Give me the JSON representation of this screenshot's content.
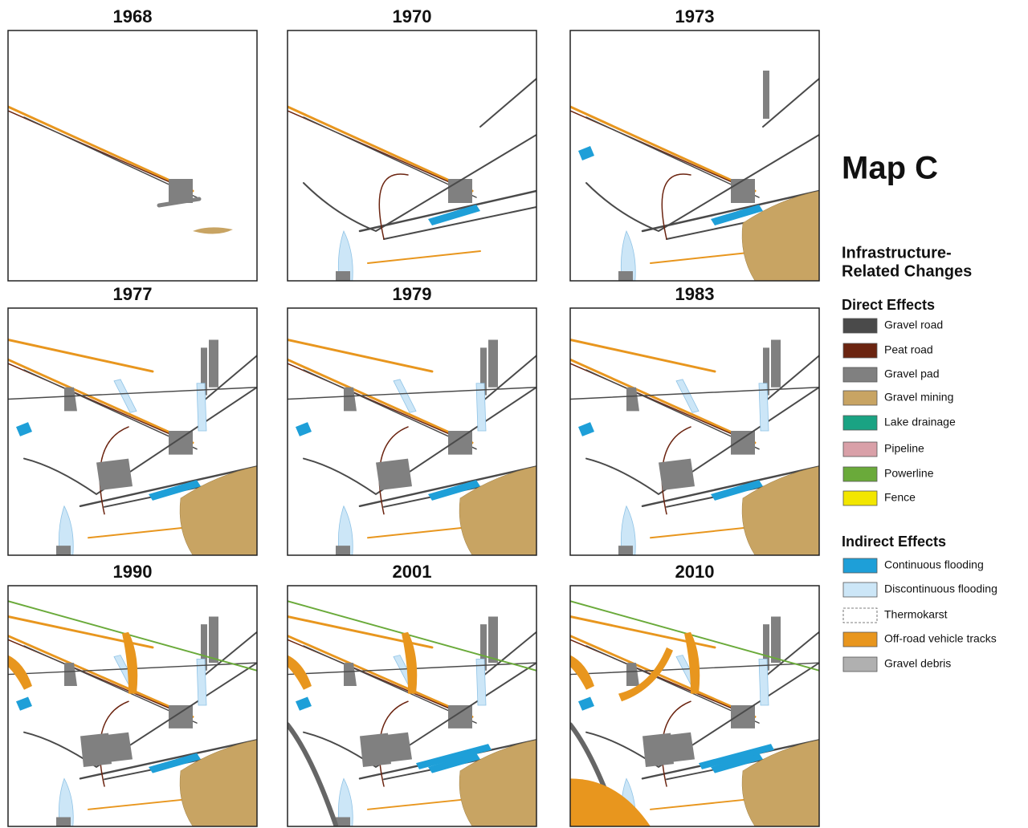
{
  "title": "Map C",
  "panels": [
    {
      "label": "1968"
    },
    {
      "label": "1970"
    },
    {
      "label": "1973"
    },
    {
      "label": "1977"
    },
    {
      "label": "1979"
    },
    {
      "label": "1983"
    },
    {
      "label": "1990"
    },
    {
      "label": "2001"
    },
    {
      "label": "2010"
    }
  ],
  "legend": {
    "heading": [
      "Infrastructure-",
      "Related Changes"
    ],
    "direct": {
      "title": "Direct Effects",
      "items": [
        {
          "label": "Gravel road",
          "color": "#4a4a4a"
        },
        {
          "label": "Peat road",
          "color": "#6b2410"
        },
        {
          "label": "Gravel pad",
          "color": "#808080"
        },
        {
          "label": "Gravel mining",
          "color": "#c8a463"
        },
        {
          "label": "Lake drainage",
          "color": "#1aa383"
        },
        {
          "label": "Pipeline",
          "color": "#d9a0a8"
        },
        {
          "label": "Powerline",
          "color": "#6aaa3a"
        },
        {
          "label": "Fence",
          "color": "#f2e600"
        }
      ]
    },
    "indirect": {
      "title": "Indirect Effects",
      "items": [
        {
          "label": "Continuous flooding",
          "color": "#1e9fd8"
        },
        {
          "label": "Discontinuous flooding",
          "color": "#cce6f7"
        },
        {
          "label": "Thermokarst",
          "color": "#ffffff"
        },
        {
          "label": "Off-road vehicle tracks",
          "color": "#e8961e"
        },
        {
          "label": "Gravel debris",
          "color": "#b0b0b0"
        }
      ]
    }
  }
}
